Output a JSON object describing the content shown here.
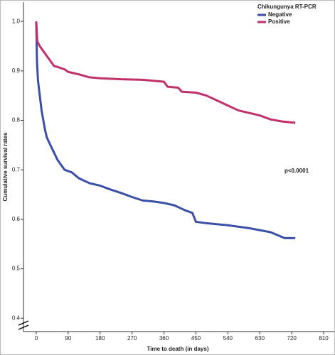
{
  "chart_data": {
    "type": "line",
    "x_label": "Time to death (in days)",
    "y_label": "Cumulative survival rates",
    "legend_title": "Chikungunya RT-PCR",
    "legend_position": "top-right",
    "annotation": "p<0.0001",
    "xlim": [
      -36,
      840
    ],
    "ylim": [
      0.373,
      1.039
    ],
    "xticks": [
      0,
      90,
      180,
      270,
      360,
      450,
      540,
      630,
      720,
      810
    ],
    "yticks": [
      0.4,
      0.5,
      0.6,
      0.7,
      0.8,
      0.9,
      {
        "value": 1,
        "label": "1.0"
      }
    ],
    "series": [
      {
        "name": "Negative",
        "color": "#3a4fa8",
        "x": [
          0,
          2,
          5,
          10,
          15,
          20,
          25,
          30,
          40,
          50,
          60,
          70,
          80,
          100,
          120,
          150,
          180,
          210,
          240,
          270,
          300,
          330,
          360,
          390,
          420,
          440,
          450,
          480,
          540,
          600,
          660,
          690,
          700,
          730
        ],
        "values": [
          1.0,
          0.92,
          0.88,
          0.85,
          0.82,
          0.8,
          0.78,
          0.765,
          0.75,
          0.735,
          0.72,
          0.71,
          0.7,
          0.695,
          0.683,
          0.673,
          0.668,
          0.66,
          0.653,
          0.645,
          0.638,
          0.636,
          0.633,
          0.628,
          0.618,
          0.613,
          0.595,
          0.592,
          0.588,
          0.582,
          0.574,
          0.565,
          0.562,
          0.562
        ]
      },
      {
        "name": "Positive",
        "color": "#c0306a",
        "x": [
          0,
          3,
          10,
          20,
          30,
          40,
          50,
          60,
          80,
          90,
          120,
          150,
          180,
          240,
          300,
          360,
          370,
          400,
          410,
          450,
          480,
          510,
          540,
          570,
          600,
          630,
          660,
          690,
          730
        ],
        "values": [
          1.0,
          0.96,
          0.95,
          0.94,
          0.93,
          0.92,
          0.91,
          0.908,
          0.903,
          0.898,
          0.893,
          0.887,
          0.885,
          0.883,
          0.882,
          0.878,
          0.868,
          0.866,
          0.858,
          0.856,
          0.85,
          0.84,
          0.83,
          0.82,
          0.815,
          0.81,
          0.802,
          0.798,
          0.795
        ]
      }
    ]
  }
}
